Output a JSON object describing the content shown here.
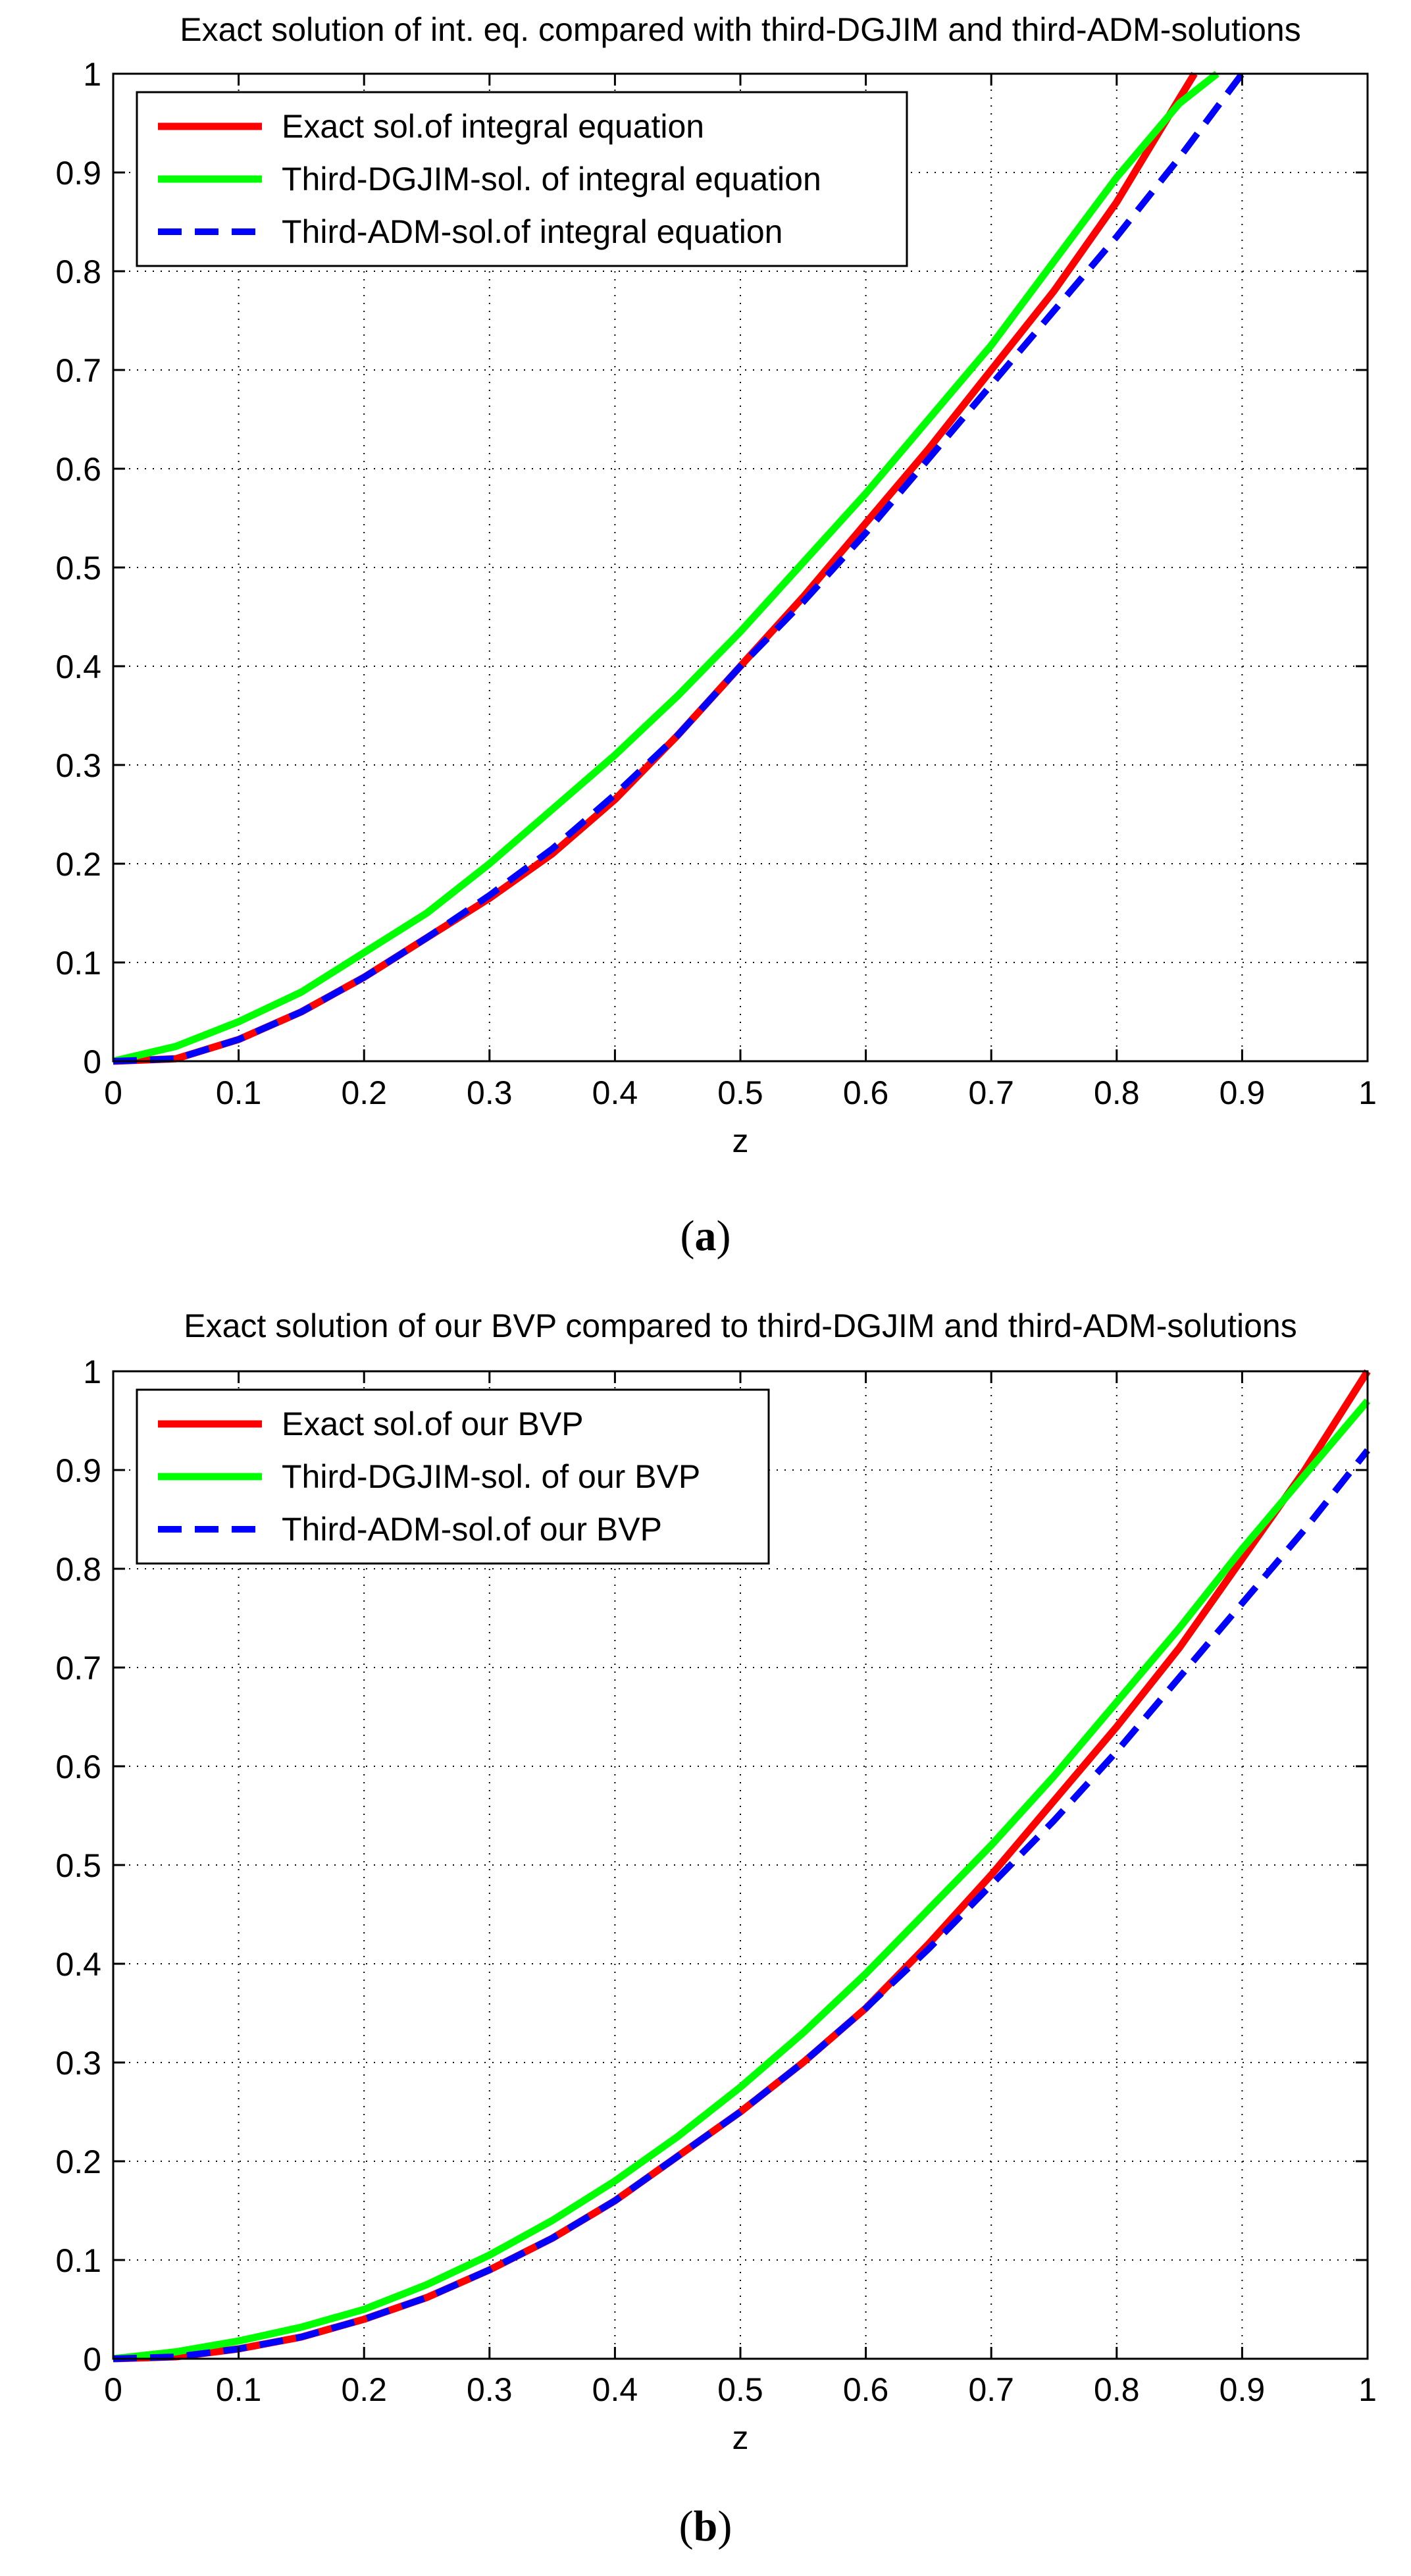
{
  "chart_data": [
    {
      "type": "line",
      "title": "Exact solution of int. eq. compared with third-DGJIM and third-ADM-solutions",
      "xlabel": "z",
      "ylabel": "",
      "xlim": [
        0,
        1
      ],
      "ylim": [
        0,
        1
      ],
      "grid": true,
      "legend_position": "top-left",
      "xticks": [
        "0",
        "0.1",
        "0.2",
        "0.3",
        "0.4",
        "0.5",
        "0.6",
        "0.7",
        "0.8",
        "0.9",
        "1"
      ],
      "yticks": [
        "0",
        "0.1",
        "0.2",
        "0.3",
        "0.4",
        "0.5",
        "0.6",
        "0.7",
        "0.8",
        "0.9",
        "1"
      ],
      "caption_label": "a",
      "series": [
        {
          "name": "Exact sol.of integral equation",
          "color": "#ff0000",
          "style": "solid",
          "x": [
            0,
            0.05,
            0.1,
            0.15,
            0.2,
            0.25,
            0.3,
            0.35,
            0.4,
            0.45,
            0.5,
            0.55,
            0.6,
            0.65,
            0.7,
            0.75,
            0.8,
            0.85,
            0.862
          ],
          "y": [
            0,
            0.0025,
            0.022,
            0.05,
            0.085,
            0.125,
            0.165,
            0.21,
            0.265,
            0.33,
            0.4,
            0.47,
            0.545,
            0.62,
            0.7,
            0.78,
            0.87,
            0.975,
            1.0
          ]
        },
        {
          "name": "Third-DGJIM-sol. of integral equation",
          "color": "#00ff00",
          "style": "solid",
          "x": [
            0,
            0.05,
            0.1,
            0.15,
            0.2,
            0.25,
            0.3,
            0.35,
            0.4,
            0.45,
            0.5,
            0.55,
            0.6,
            0.65,
            0.7,
            0.75,
            0.8,
            0.85,
            0.88
          ],
          "y": [
            0,
            0.015,
            0.04,
            0.07,
            0.11,
            0.15,
            0.2,
            0.255,
            0.31,
            0.37,
            0.435,
            0.505,
            0.575,
            0.65,
            0.725,
            0.81,
            0.895,
            0.97,
            1.0
          ]
        },
        {
          "name": "Third-ADM-sol.of integral equation",
          "color": "#0000ff",
          "style": "dashed",
          "x": [
            0,
            0.05,
            0.1,
            0.15,
            0.2,
            0.25,
            0.3,
            0.35,
            0.4,
            0.45,
            0.5,
            0.55,
            0.6,
            0.65,
            0.7,
            0.75,
            0.8,
            0.85,
            0.9
          ],
          "y": [
            0,
            0.0025,
            0.022,
            0.05,
            0.085,
            0.125,
            0.168,
            0.215,
            0.27,
            0.33,
            0.4,
            0.465,
            0.535,
            0.61,
            0.685,
            0.76,
            0.835,
            0.915,
            1.0
          ]
        }
      ]
    },
    {
      "type": "line",
      "title": "Exact solution of our BVP compared to third-DGJIM and third-ADM-solutions",
      "xlabel": "z",
      "ylabel": "",
      "xlim": [
        0,
        1
      ],
      "ylim": [
        0,
        1
      ],
      "grid": true,
      "legend_position": "top-left",
      "xticks": [
        "0",
        "0.1",
        "0.2",
        "0.3",
        "0.4",
        "0.5",
        "0.6",
        "0.7",
        "0.8",
        "0.9",
        "1"
      ],
      "yticks": [
        "0",
        "0.1",
        "0.2",
        "0.3",
        "0.4",
        "0.5",
        "0.6",
        "0.7",
        "0.8",
        "0.9",
        "1"
      ],
      "caption_label": "b",
      "series": [
        {
          "name": "Exact sol.of our BVP",
          "color": "#ff0000",
          "style": "solid",
          "x": [
            0,
            0.05,
            0.1,
            0.15,
            0.2,
            0.25,
            0.3,
            0.35,
            0.4,
            0.45,
            0.5,
            0.55,
            0.6,
            0.65,
            0.7,
            0.75,
            0.8,
            0.85,
            0.9,
            0.95,
            1.0
          ],
          "y": [
            0,
            0.002,
            0.01,
            0.022,
            0.04,
            0.062,
            0.09,
            0.122,
            0.16,
            0.205,
            0.25,
            0.3,
            0.355,
            0.42,
            0.49,
            0.565,
            0.64,
            0.72,
            0.81,
            0.9,
            1.0
          ]
        },
        {
          "name": "Third-DGJIM-sol. of our BVP",
          "color": "#00ff00",
          "style": "solid",
          "x": [
            0,
            0.05,
            0.1,
            0.15,
            0.2,
            0.25,
            0.3,
            0.35,
            0.4,
            0.45,
            0.5,
            0.55,
            0.6,
            0.65,
            0.7,
            0.75,
            0.8,
            0.85,
            0.9,
            0.95,
            1.0
          ],
          "y": [
            0,
            0.007,
            0.018,
            0.032,
            0.05,
            0.075,
            0.105,
            0.14,
            0.18,
            0.225,
            0.275,
            0.33,
            0.39,
            0.455,
            0.52,
            0.59,
            0.665,
            0.74,
            0.82,
            0.895,
            0.97
          ]
        },
        {
          "name": "Third-ADM-sol.of our BVP",
          "color": "#0000ff",
          "style": "dashed",
          "x": [
            0,
            0.05,
            0.1,
            0.15,
            0.2,
            0.25,
            0.3,
            0.35,
            0.4,
            0.45,
            0.5,
            0.55,
            0.6,
            0.65,
            0.7,
            0.75,
            0.8,
            0.85,
            0.9,
            0.95,
            1.0
          ],
          "y": [
            0,
            0.002,
            0.01,
            0.022,
            0.04,
            0.062,
            0.09,
            0.122,
            0.16,
            0.205,
            0.25,
            0.3,
            0.355,
            0.415,
            0.48,
            0.545,
            0.615,
            0.69,
            0.765,
            0.84,
            0.92
          ]
        }
      ]
    }
  ]
}
